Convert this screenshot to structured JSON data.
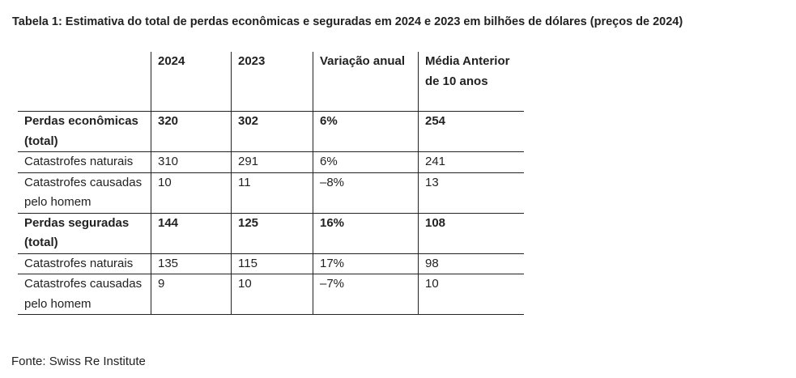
{
  "title": "Tabela 1: Estimativa do total de perdas econômicas e seguradas em 2024 e 2023 em bilhões de dólares (preços de 2024)",
  "table": {
    "headers": [
      "",
      "2024",
      "2023",
      "Variação anual",
      "Média Anterior de 10 anos"
    ],
    "rows": [
      {
        "label": "Perdas econômicas (total)",
        "v2024": "320",
        "v2023": "302",
        "variacao": "6%",
        "media": "254"
      },
      {
        "label": "Catastrofes naturais",
        "v2024": "310",
        "v2023": "291",
        "variacao": "6%",
        "media": "241"
      },
      {
        "label": "Catastrofes causadas pelo homem",
        "v2024": "10",
        "v2023": "11",
        "variacao": "–8%",
        "media": "13"
      },
      {
        "label": "Perdas seguradas (total)",
        "v2024": "144",
        "v2023": "125",
        "variacao": "16%",
        "media": "108"
      },
      {
        "label": "Catastrofes naturais",
        "v2024": "135",
        "v2023": "115",
        "variacao": "17%",
        "media": "98"
      },
      {
        "label": "Catastrofes causadas pelo homem",
        "v2024": "9",
        "v2023": "10",
        "variacao": "–7%",
        "media": "10"
      }
    ]
  },
  "source": "Fonte: Swiss Re Institute"
}
